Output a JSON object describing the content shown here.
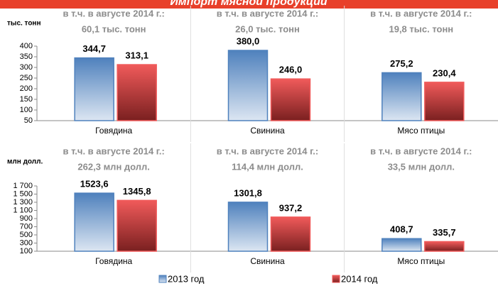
{
  "title": "Импорт мясной продукции",
  "chart_data": [
    {
      "type": "bar",
      "ylabel": "тыс. тонн",
      "categories": [
        "Говядина",
        "Свинина",
        "Мясо птицы"
      ],
      "annotations": [
        [
          "в т.ч. в августе 2014 г.:",
          "60,1 тыс. тонн"
        ],
        [
          "в т.ч. в августе 2014 г.:",
          "26,0 тыс. тонн"
        ],
        [
          "в т.ч. в августе 2014 г.:",
          "19,8 тыс. тонн"
        ]
      ],
      "series": [
        {
          "color": "#4f81bd",
          "label_color": "#1f3864",
          "values": [
            344.7,
            380.0,
            275.2
          ],
          "value_labels": [
            "344,7",
            "380,0",
            "275,2"
          ]
        },
        {
          "color": "#f05a5a",
          "label_color": "#953735",
          "values": [
            313.1,
            246.0,
            230.4
          ],
          "value_labels": [
            "313,1",
            "246,0",
            "230,4"
          ]
        }
      ],
      "ylim": [
        50,
        400
      ],
      "yticks": [
        50,
        100,
        150,
        200,
        250,
        300,
        350,
        400
      ]
    },
    {
      "type": "bar",
      "ylabel": "млн долл.",
      "categories": [
        "Говядина",
        "Свинина",
        "Мясо птицы"
      ],
      "annotations": [
        [
          "в т.ч. в августе 2014 г.:",
          "262,3 млн долл."
        ],
        [
          "в т.ч. в августе 2014 г.:",
          "114,4 млн долл."
        ],
        [
          "в т.ч. в августе 2014 г.:",
          "33,5 млн долл."
        ]
      ],
      "series": [
        {
          "name": "2013 год",
          "color": "#4f81bd",
          "label_color": "#1f3864",
          "values": [
            1523.6,
            1301.8,
            408.7
          ],
          "value_labels": [
            "1523,6",
            "1301,8",
            "408,7"
          ]
        },
        {
          "name": "2014 год",
          "color": "#f05a5a",
          "label_color": "#953735",
          "values": [
            1345.8,
            937.2,
            335.7
          ],
          "value_labels": [
            "1345,8",
            "937,2",
            "335,7"
          ]
        }
      ],
      "ylim": [
        100,
        1700
      ],
      "yticks": [
        100,
        300,
        500,
        700,
        900,
        {
          "value": 1100,
          "label": "1 100"
        },
        {
          "value": 1300,
          "label": "1 300"
        },
        {
          "value": 1500,
          "label": "1 500"
        },
        {
          "value": 1700,
          "label": "1 700"
        }
      ],
      "legend": "bottom"
    }
  ]
}
